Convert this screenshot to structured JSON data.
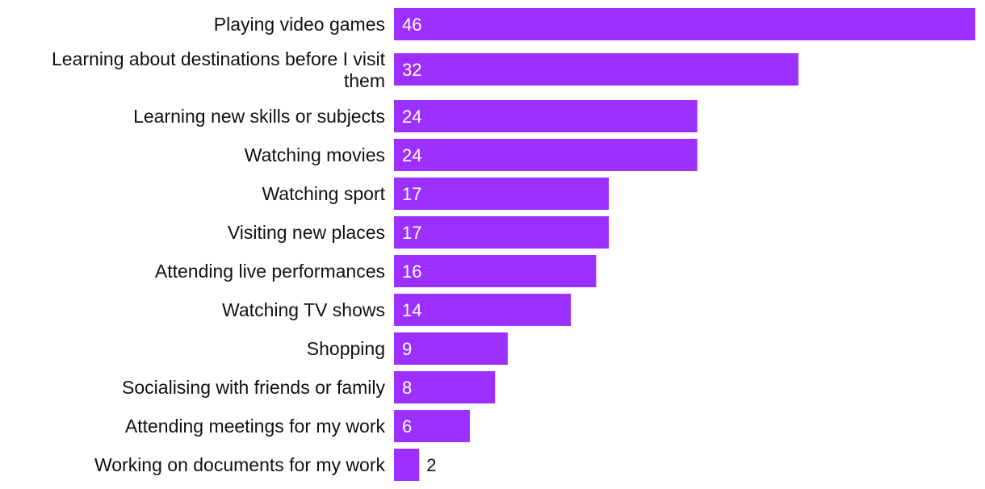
{
  "chart_data": {
    "type": "bar",
    "orientation": "horizontal",
    "categories": [
      "Playing video games",
      "Learning about destinations before I visit them",
      "Learning new skills or subjects",
      "Watching movies",
      "Watching sport",
      "Visiting new places",
      "Attending live performances",
      "Watching TV shows",
      "Shopping",
      "Socialising with friends or family",
      "Attending meetings for my work",
      "Working on documents for my work"
    ],
    "values": [
      46,
      32,
      24,
      24,
      17,
      17,
      16,
      14,
      9,
      8,
      6,
      2
    ],
    "title": "",
    "xlabel": "",
    "ylabel": "",
    "xlim": [
      0,
      46
    ],
    "grid": false,
    "legend": "none",
    "bar_color": "#9b30ff",
    "label_inside_color": "#ffffff",
    "label_outside_color": "#111111"
  }
}
